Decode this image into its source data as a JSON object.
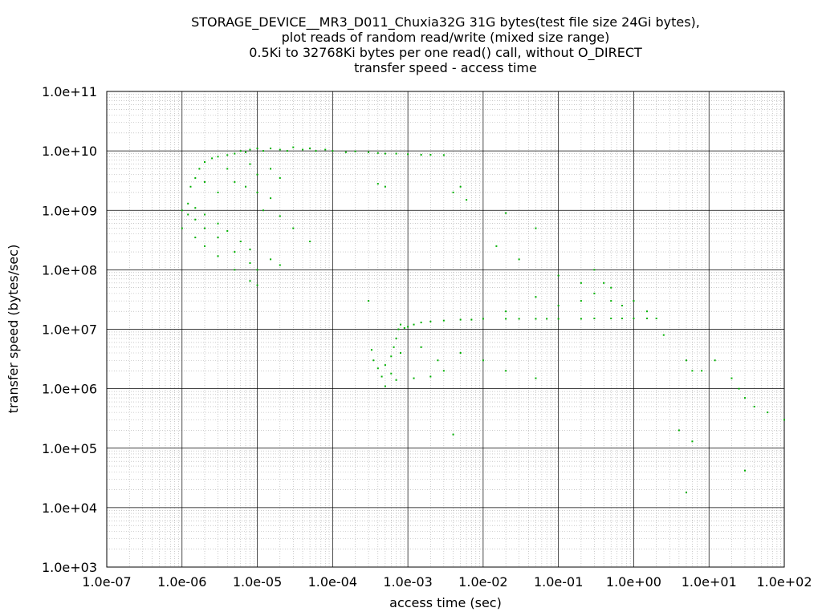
{
  "chart_data": {
    "type": "scatter",
    "title": [
      "STORAGE_DEVICE__MR3_D011_Chuxia32G 31G bytes(test file size 24Gi bytes),",
      "plot reads of random read/write (mixed size range)",
      "0.5Ki to 32768Ki bytes per one read() call, without O_DIRECT",
      "transfer speed - access time"
    ],
    "xlabel": "access time (sec)",
    "ylabel": "transfer speed (bytes/sec)",
    "x_scale": "log",
    "y_scale": "log",
    "xlim": [
      1e-07,
      100
    ],
    "ylim": [
      1000,
      100000000000.0
    ],
    "x_ticks": [
      "1.0e-07",
      "1.0e-06",
      "1.0e-05",
      "1.0e-04",
      "1.0e-03",
      "1.0e-02",
      "1.0e-01",
      "1.0e+00",
      "1.0e+01",
      "1.0e+02"
    ],
    "y_ticks": [
      "1.0e+03",
      "1.0e+04",
      "1.0e+05",
      "1.0e+06",
      "1.0e+07",
      "1.0e+08",
      "1.0e+09",
      "1.0e+10",
      "1.0e+11"
    ],
    "grid": true,
    "marker_color": "#00b000",
    "series": [
      {
        "points": [
          [
            1e-06,
            1000000000.0
          ],
          [
            1.2e-06,
            850000000.0
          ],
          [
            1.5e-06,
            700000000.0
          ],
          [
            2e-06,
            500000000.0
          ],
          [
            3e-06,
            350000000.0
          ],
          [
            5e-06,
            200000000.0
          ],
          [
            8e-06,
            130000000.0
          ],
          [
            1e-05,
            100000000.0
          ],
          [
            1e-06,
            500000000.0
          ],
          [
            1.5e-06,
            350000000.0
          ],
          [
            2e-06,
            250000000.0
          ],
          [
            3e-06,
            170000000.0
          ],
          [
            5e-06,
            100000000.0
          ],
          [
            8e-06,
            65000000.0
          ],
          [
            1e-05,
            55000000.0
          ],
          [
            1.2e-06,
            1300000000.0
          ],
          [
            1.5e-06,
            1100000000.0
          ],
          [
            2e-06,
            850000000.0
          ],
          [
            3e-06,
            600000000.0
          ],
          [
            4e-06,
            450000000.0
          ],
          [
            6e-06,
            300000000.0
          ],
          [
            8e-06,
            220000000.0
          ],
          [
            1.3e-06,
            2500000000.0
          ],
          [
            1.5e-06,
            3500000000.0
          ],
          [
            1.7e-06,
            5000000000.0
          ],
          [
            2e-06,
            6500000000.0
          ],
          [
            2.5e-06,
            7500000000.0
          ],
          [
            3e-06,
            8000000000.0
          ],
          [
            4e-06,
            8500000000.0
          ],
          [
            5e-06,
            9000000000.0
          ],
          [
            6e-06,
            10000000000.0
          ],
          [
            7e-06,
            9500000000.0
          ],
          [
            8e-06,
            10500000000.0
          ],
          [
            1e-05,
            11000000000.0
          ],
          [
            1.2e-05,
            10000000000.0
          ],
          [
            1.5e-05,
            11000000000.0
          ],
          [
            2e-05,
            10500000000.0
          ],
          [
            2.5e-05,
            10000000000.0
          ],
          [
            3e-05,
            11500000000.0
          ],
          [
            4e-05,
            10500000000.0
          ],
          [
            5e-05,
            11000000000.0
          ],
          [
            6e-05,
            10000000000.0
          ],
          [
            8e-05,
            10500000000.0
          ],
          [
            0.0001,
            10000000000.0
          ],
          [
            0.00015,
            9500000000.0
          ],
          [
            0.0002,
            9800000000.0
          ],
          [
            0.0003,
            9500000000.0
          ],
          [
            0.0004,
            9200000000.0
          ],
          [
            0.0005,
            9000000000.0
          ],
          [
            0.0007,
            9000000000.0
          ],
          [
            0.001,
            8800000000.0
          ],
          [
            0.0015,
            8600000000.0
          ],
          [
            0.002,
            8600000000.0
          ],
          [
            0.003,
            8500000000.0
          ],
          [
            2e-06,
            3000000000.0
          ],
          [
            3e-06,
            2000000000.0
          ],
          [
            4e-06,
            5000000000.0
          ],
          [
            5e-06,
            3000000000.0
          ],
          [
            7e-06,
            2500000000.0
          ],
          [
            8e-06,
            6000000000.0
          ],
          [
            1e-05,
            4000000000.0
          ],
          [
            1.5e-05,
            5000000000.0
          ],
          [
            2e-05,
            3500000000.0
          ],
          [
            1e-05,
            2000000000.0
          ],
          [
            1.2e-05,
            1000000000.0
          ],
          [
            1.5e-05,
            1600000000.0
          ],
          [
            2e-05,
            800000000.0
          ],
          [
            3e-05,
            500000000.0
          ],
          [
            5e-05,
            300000000.0
          ],
          [
            1.5e-05,
            150000000.0
          ],
          [
            2e-05,
            120000000.0
          ],
          [
            0.0004,
            2800000000.0
          ],
          [
            0.0005,
            2500000000.0
          ],
          [
            0.004,
            2000000000.0
          ],
          [
            0.005,
            2500000000.0
          ],
          [
            0.006,
            1500000000.0
          ],
          [
            0.02,
            900000000.0
          ],
          [
            0.05,
            500000000.0
          ],
          [
            0.015,
            250000000.0
          ],
          [
            0.03,
            150000000.0
          ],
          [
            0.1,
            80000000.0
          ],
          [
            0.2,
            60000000.0
          ],
          [
            0.3,
            100000000.0
          ],
          [
            0.5,
            50000000.0
          ],
          [
            1.0,
            30000000.0
          ],
          [
            1.5,
            20000000.0
          ],
          [
            0.0005,
            1100000.0
          ],
          [
            0.00045,
            1600000.0
          ],
          [
            0.0004,
            2200000.0
          ],
          [
            0.00035,
            3000000.0
          ],
          [
            0.00033,
            4500000.0
          ],
          [
            0.0005,
            2500000.0
          ],
          [
            0.0006,
            1800000.0
          ],
          [
            0.0007,
            1400000.0
          ],
          [
            0.0006,
            3500000.0
          ],
          [
            0.00065,
            5000000.0
          ],
          [
            0.0007,
            7000000.0
          ],
          [
            0.00075,
            10000000.0
          ],
          [
            0.0008,
            4000000.0
          ],
          [
            0.0008,
            12000000.0
          ],
          [
            0.0009,
            10500000.0
          ],
          [
            0.001,
            11000000.0
          ],
          [
            0.0012,
            12000000.0
          ],
          [
            0.0015,
            13000000.0
          ],
          [
            0.002,
            13500000.0
          ],
          [
            0.003,
            14000000.0
          ],
          [
            0.005,
            14500000.0
          ],
          [
            0.007,
            14500000.0
          ],
          [
            0.01,
            15000000.0
          ],
          [
            0.02,
            15000000.0
          ],
          [
            0.03,
            15000000.0
          ],
          [
            0.05,
            15000000.0
          ],
          [
            0.07,
            15000000.0
          ],
          [
            0.1,
            15000000.0
          ],
          [
            0.2,
            15000000.0
          ],
          [
            0.3,
            15200000.0
          ],
          [
            0.5,
            15200000.0
          ],
          [
            0.7,
            15200000.0
          ],
          [
            1.0,
            15200000.0
          ],
          [
            1.5,
            15200000.0
          ],
          [
            2.0,
            15200000.0
          ],
          [
            0.3,
            40000000.0
          ],
          [
            0.5,
            30000000.0
          ],
          [
            0.7,
            25000000.0
          ],
          [
            0.4,
            60000000.0
          ],
          [
            0.2,
            30000000.0
          ],
          [
            0.1,
            25000000.0
          ],
          [
            0.05,
            35000000.0
          ],
          [
            0.02,
            20000000.0
          ],
          [
            0.0015,
            5000000.0
          ],
          [
            0.0025,
            3000000.0
          ],
          [
            0.003,
            2000000.0
          ],
          [
            0.005,
            4000000.0
          ],
          [
            0.01,
            3000000.0
          ],
          [
            0.02,
            2000000.0
          ],
          [
            0.05,
            1500000.0
          ],
          [
            2.5,
            8000000.0
          ],
          [
            5.0,
            3000000.0
          ],
          [
            6.0,
            2000000.0
          ],
          [
            8.0,
            2000000.0
          ],
          [
            12,
            3000000.0
          ],
          [
            20,
            1500000.0
          ],
          [
            25,
            1000000.0
          ],
          [
            30,
            700000.0
          ],
          [
            40,
            500000.0
          ],
          [
            60,
            400000.0
          ],
          [
            100,
            300000.0
          ],
          [
            4.0,
            200000.0
          ],
          [
            6.0,
            130000.0
          ],
          [
            5.0,
            18000.0
          ],
          [
            30,
            42000.0
          ],
          [
            0.004,
            170000.0
          ],
          [
            0.0012,
            1500000.0
          ],
          [
            0.002,
            1600000.0
          ],
          [
            0.0003,
            30000000.0
          ]
        ]
      }
    ]
  }
}
